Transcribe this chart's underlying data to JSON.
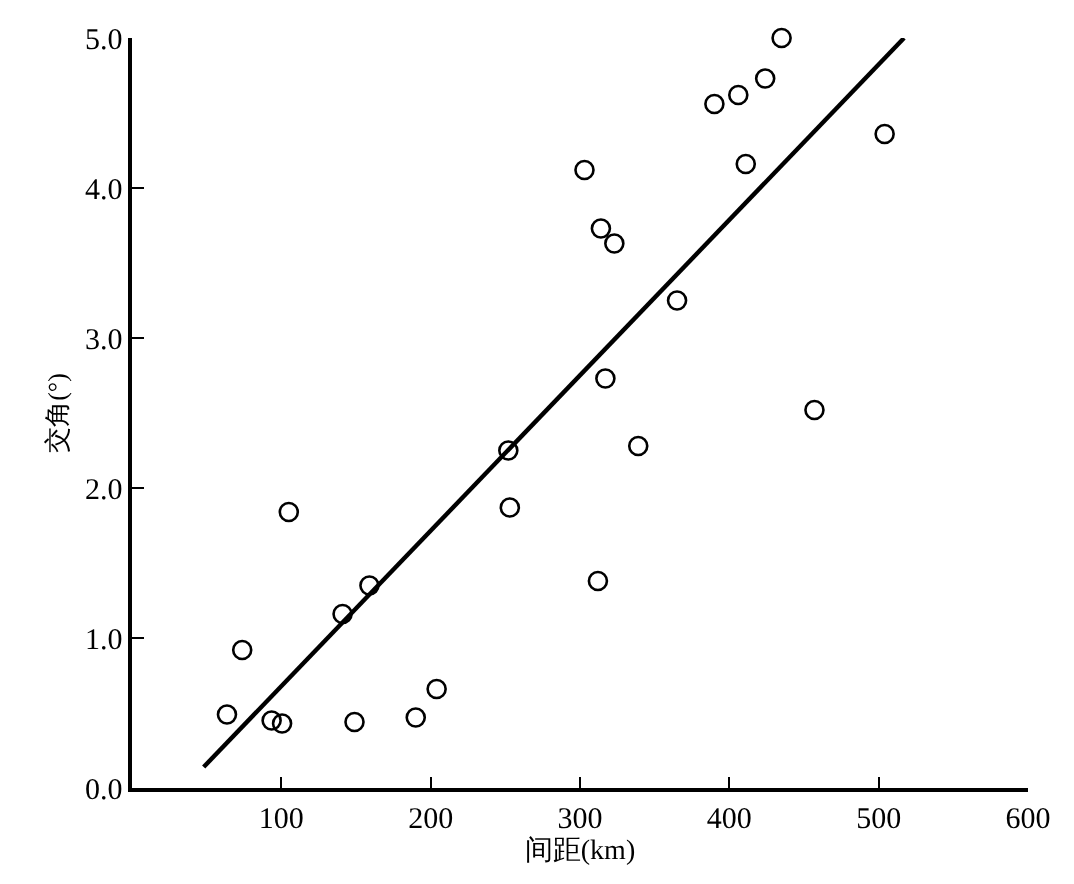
{
  "chart_data": {
    "type": "scatter",
    "xlabel": "间距(km)",
    "ylabel": "交角(°)",
    "x": [
      63.6,
      73.8,
      93.5,
      100.5,
      105,
      141,
      149,
      159,
      190,
      204,
      252,
      253,
      303,
      314,
      323,
      317,
      312,
      339,
      365,
      390,
      406,
      424,
      435,
      411,
      457,
      504
    ],
    "series": [
      {
        "color": "#000000",
        "values": [
          0.49,
          0.92,
          0.45,
          0.43,
          1.84,
          1.16,
          0.44,
          1.35,
          0.47,
          0.66,
          2.25,
          1.87,
          4.12,
          3.73,
          3.63,
          2.73,
          1.38,
          2.28,
          3.25,
          4.56,
          4.62,
          4.73,
          5.0,
          4.16,
          2.52,
          4.36
        ]
      },
      {
        "type": "line",
        "marker": "none",
        "color": "#000000",
        "x": [
          48,
          517
        ],
        "values": [
          0.14,
          5.0
        ]
      }
    ],
    "xlim": [
      0,
      600
    ],
    "ylim": [
      0,
      5
    ],
    "xticks": [
      100,
      200,
      300,
      400,
      500,
      600
    ],
    "yticks": [
      {
        "value": 0,
        "label": "0.0"
      },
      {
        "value": 1,
        "label": "1.0"
      },
      {
        "value": 2,
        "label": "2.0"
      },
      {
        "value": 3,
        "label": "3.0"
      },
      {
        "value": 4,
        "label": "4.0"
      },
      {
        "value": 5,
        "label": "5.0"
      }
    ],
    "marker": "circle"
  }
}
